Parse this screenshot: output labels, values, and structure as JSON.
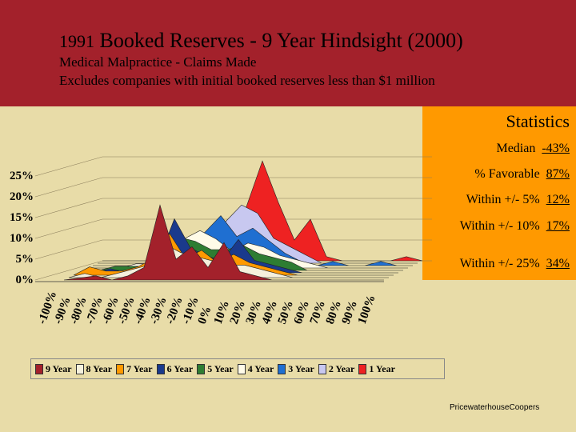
{
  "header": {
    "title_year": "1991",
    "title_rest": "Booked Reserves - 9 Year Hindsight (2000)",
    "line1": "Medical Malpractice - Claims Made",
    "line2": "Excludes companies with initial booked reserves less than $1 million"
  },
  "stats": {
    "title": "Statistics",
    "rows": [
      {
        "label": "Median",
        "value": "-43%"
      },
      {
        "label": "% Favorable",
        "value": "87%"
      },
      {
        "label": "Within +/- 5%",
        "value": "12%"
      },
      {
        "label": "Within +/- 10%",
        "value": "17%"
      },
      {
        "label": "Within +/- 25%",
        "value": "34%"
      }
    ]
  },
  "footer": "PricewaterhouseCoopers",
  "chart_data": {
    "type": "area",
    "y_ticks": [
      "25%",
      "20%",
      "15%",
      "10%",
      "5%",
      "0%"
    ],
    "ylim": [
      0,
      25
    ],
    "categories": [
      "-100%",
      "-90%",
      "-80%",
      "-70%",
      "-60%",
      "-50%",
      "-40%",
      "-30%",
      "-20%",
      "-10%",
      "0%",
      "10%",
      "20%",
      "30%",
      "40%",
      "50%",
      "60%",
      "70%",
      "80%",
      "90%",
      "100%"
    ],
    "series": [
      {
        "name": "9 Year",
        "color": "#a3212b",
        "values": [
          0,
          0.5,
          1,
          0,
          1,
          3,
          18,
          5,
          8,
          3,
          9,
          2,
          1,
          0,
          0,
          0,
          0,
          0,
          0,
          0,
          0
        ]
      },
      {
        "name": "8 Year",
        "color": "#f5f0dc",
        "values": [
          0,
          1,
          0,
          1,
          2,
          3,
          8,
          6,
          5,
          4,
          3,
          3,
          2,
          1,
          0,
          0,
          0,
          0,
          0,
          0,
          0
        ]
      },
      {
        "name": "7 Year",
        "color": "#ff9900",
        "values": [
          0,
          2,
          1,
          1,
          2,
          4,
          10,
          4,
          6,
          3,
          5,
          3,
          2,
          1,
          0,
          0,
          0,
          0,
          0,
          0,
          0
        ]
      },
      {
        "name": "6 Year",
        "color": "#1a3a8c",
        "values": [
          0,
          0,
          1,
          0,
          2,
          3,
          13,
          6,
          4,
          3,
          8,
          3,
          2,
          1,
          0,
          0,
          0,
          0,
          0,
          0,
          0
        ]
      },
      {
        "name": "5 Year",
        "color": "#2e7d32",
        "values": [
          0,
          0,
          1,
          1,
          1,
          4,
          8,
          7,
          5,
          5,
          6,
          4,
          3,
          2,
          0,
          0,
          0,
          0,
          0,
          0,
          0
        ]
      },
      {
        "name": "4 Year",
        "color": "#fffbe8",
        "values": [
          0,
          0,
          0,
          1,
          1,
          3,
          7,
          9,
          7,
          4,
          6,
          5,
          3,
          2,
          1,
          0,
          0,
          0,
          0,
          0,
          0
        ]
      },
      {
        "name": "3 Year",
        "color": "#1f6fd1",
        "values": [
          0,
          0,
          0,
          0,
          1,
          2,
          6,
          8,
          12,
          7,
          9,
          6,
          3,
          1,
          0,
          1,
          0,
          0,
          1,
          0,
          0
        ]
      },
      {
        "name": "2 Year",
        "color": "#c8c8f0",
        "values": [
          0,
          0,
          0,
          0,
          0,
          1,
          4,
          7,
          10,
          14,
          12,
          6,
          4,
          2,
          0,
          0,
          0,
          0,
          0,
          0,
          0
        ]
      },
      {
        "name": "1 Year",
        "color": "#ee2222",
        "values": [
          0,
          0,
          0,
          0,
          0,
          0,
          1,
          3,
          6,
          13,
          24,
          14,
          5,
          10,
          1,
          0,
          0,
          0,
          0,
          1,
          0
        ]
      }
    ],
    "legend_position": "bottom"
  }
}
